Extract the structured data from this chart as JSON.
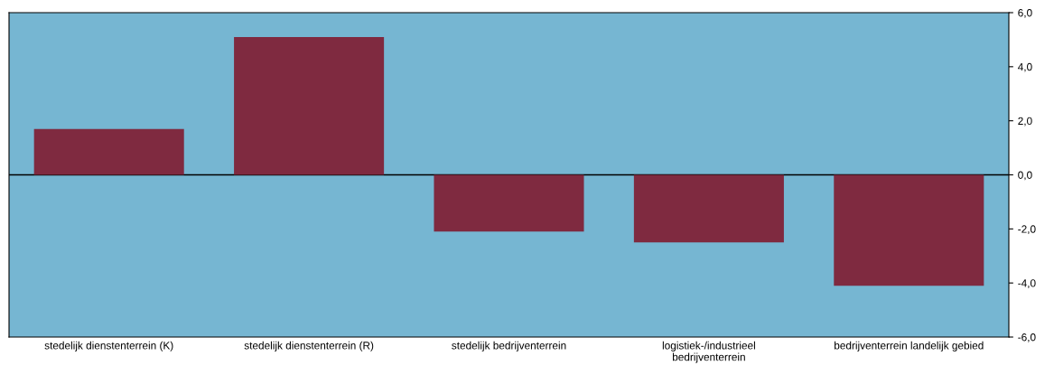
{
  "chart_data": {
    "type": "bar",
    "categories": [
      "stedelijk dienstenterrein (K)",
      "stedelijk dienstenterrein (R)",
      "stedelijk bedrijventerrein",
      "logistiek-/industrieel\nbedrijventerrein",
      "bedrijventerrein landelijk gebied"
    ],
    "values": [
      1.7,
      5.1,
      -2.1,
      -2.5,
      -4.1
    ],
    "color": "#7f2a40",
    "ylim": [
      -6,
      6
    ],
    "yticks": [
      {
        "value": -6,
        "label": "-6,0"
      },
      {
        "value": -4,
        "label": "-4,0"
      },
      {
        "value": -2,
        "label": "-2,0"
      },
      {
        "value": 0,
        "label": "0,0"
      },
      {
        "value": 2,
        "label": "2,0"
      },
      {
        "value": 4,
        "label": "4,0"
      },
      {
        "value": 6,
        "label": "6,0"
      }
    ],
    "ref_lines": [
      {
        "axis": "y",
        "value": 0,
        "color": "#000000"
      }
    ],
    "grid": false
  }
}
